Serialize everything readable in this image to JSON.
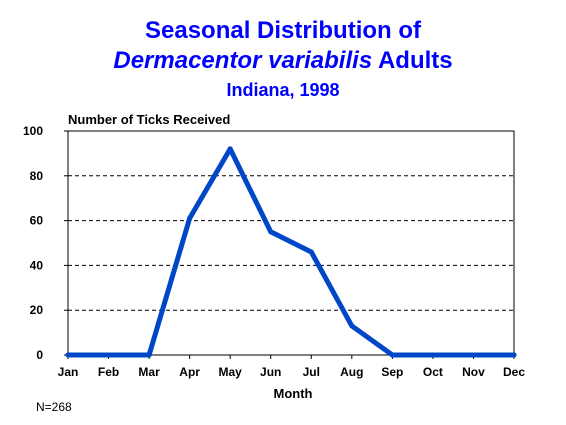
{
  "chart_data": {
    "type": "line",
    "title_line1": "Seasonal Distribution of",
    "title_species": "Dermacentor variabilis",
    "title_suffix": "Adults",
    "subtitle": "Indiana, 1998",
    "ylabel": "Number of Ticks Received",
    "xlabel": "Month",
    "categories": [
      "Jan",
      "Feb",
      "Mar",
      "Apr",
      "May",
      "Jun",
      "Jul",
      "Aug",
      "Sep",
      "Oct",
      "Nov",
      "Dec"
    ],
    "series": [
      {
        "values": [
          0,
          0,
          0,
          61,
          92,
          55,
          46,
          13,
          0,
          0,
          0,
          0
        ]
      }
    ],
    "ylim": [
      0,
      100
    ],
    "yticks": [
      0,
      20,
      40,
      60,
      80,
      100
    ],
    "grid": "horizontal dashed",
    "line_color": "#0047c8",
    "title_color": "#0000ff",
    "note": "N=268"
  }
}
